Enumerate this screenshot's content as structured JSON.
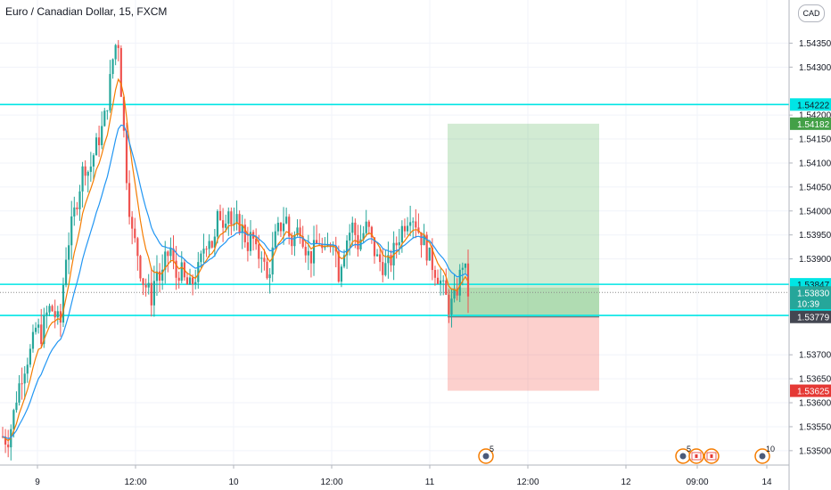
{
  "chart_data": {
    "type": "candlestick",
    "title": "Euro / Canadian Dollar, 15, FXCM",
    "currency_badge": "CAD",
    "ylim": [
      1.5347,
      1.5444
    ],
    "y_ticks": [
      "1.54350",
      "1.54300",
      "1.54200",
      "1.54150",
      "1.54100",
      "1.54050",
      "1.54000",
      "1.53950",
      "1.53900",
      "1.53700",
      "1.53650",
      "1.53600",
      "1.53550",
      "1.53500"
    ],
    "x_ticks": [
      "9",
      "12:00",
      "10",
      "12:00",
      "11",
      "12:00",
      "12",
      "09:00",
      "14"
    ],
    "price_markers": [
      {
        "label": "1.54222",
        "value": 1.54222,
        "kind": "line"
      },
      {
        "label": "1.54182",
        "value": 1.54182,
        "kind": "target"
      },
      {
        "label": "1.53847",
        "value": 1.53847,
        "kind": "line"
      },
      {
        "label": "1.53830",
        "value": 1.5383,
        "kind": "last"
      },
      {
        "label": "10:39",
        "value": 1.53807,
        "kind": "countdown"
      },
      {
        "label": "1.53782",
        "value": 1.53782,
        "kind": "line"
      },
      {
        "label": "1.53779",
        "value": 1.53779,
        "kind": "entry"
      },
      {
        "label": "1.53625",
        "value": 1.53625,
        "kind": "stop"
      }
    ],
    "horizontal_lines": [
      1.54222,
      1.53847,
      1.53782
    ],
    "position": {
      "entry": 1.53779,
      "target": 1.54182,
      "stop": 1.53625
    },
    "event_badges": [
      "5",
      "5",
      "10"
    ],
    "close_path": [
      1.5353,
      1.5352,
      1.5356,
      1.5362,
      1.5366,
      1.5369,
      1.5371,
      1.5376,
      1.5374,
      1.5378,
      1.538,
      1.5378,
      1.5376,
      1.539,
      1.5395,
      1.54,
      1.5405,
      1.541,
      1.5408,
      1.5412,
      1.5415,
      1.5418,
      1.5424,
      1.5432,
      1.5437,
      1.542,
      1.5405,
      1.5395,
      1.5392,
      1.5386,
      1.5384,
      1.5382,
      1.5388,
      1.5385,
      1.539,
      1.5392,
      1.5386,
      1.5388,
      1.5385,
      1.5384,
      1.5386,
      1.5388,
      1.5393,
      1.5395,
      1.5392,
      1.54,
      1.5398,
      1.5401,
      1.5395,
      1.5398,
      1.5396,
      1.5393,
      1.5395,
      1.539,
      1.5392,
      1.5385,
      1.539,
      1.5395,
      1.5397,
      1.5399,
      1.5393,
      1.5395,
      1.5397,
      1.5393,
      1.539,
      1.5392,
      1.5394,
      1.539,
      1.5393,
      1.5395,
      1.5387,
      1.5392,
      1.5395,
      1.5397,
      1.5393,
      1.5395,
      1.5397,
      1.5393,
      1.539,
      1.5389,
      1.5388,
      1.539,
      1.5393,
      1.5396,
      1.5398,
      1.54,
      1.5398,
      1.5395,
      1.5393,
      1.539,
      1.5388,
      1.5386,
      1.5383,
      1.538,
      1.5381,
      1.5385,
      1.539,
      1.5383
    ]
  }
}
